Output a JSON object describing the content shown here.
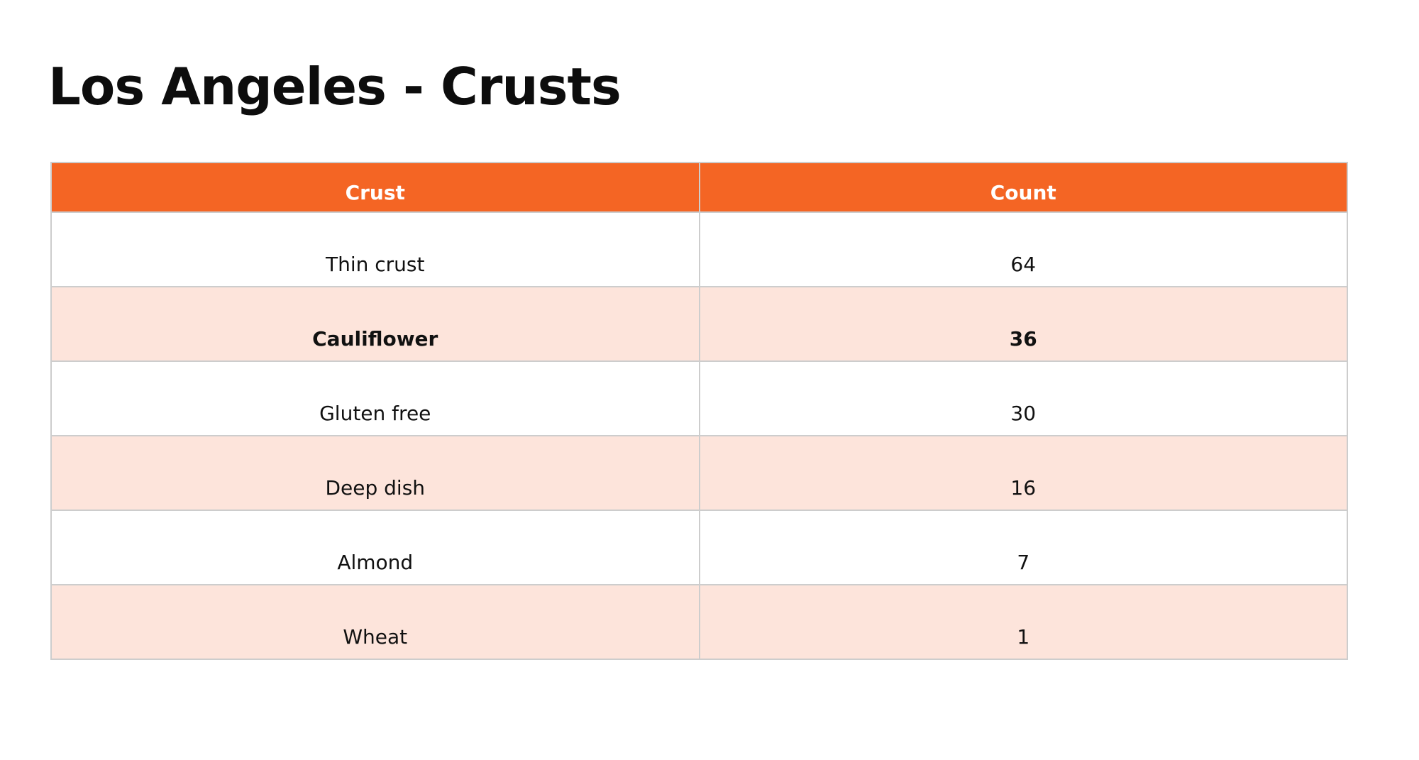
{
  "title": "Los Angeles - Crusts",
  "colors": {
    "header_background": "#f46524",
    "header_text": "#ffffff",
    "stripe_background": "#fde4db",
    "row_background": "#ffffff",
    "border": "#cdcdcd"
  },
  "table": {
    "columns": [
      "Crust",
      "Count"
    ],
    "rows": [
      {
        "crust": "Thin crust",
        "count": "64"
      },
      {
        "crust": "Cauliflower",
        "count": "36",
        "bold": true
      },
      {
        "crust": "Gluten free",
        "count": "30"
      },
      {
        "crust": "Deep dish",
        "count": "16"
      },
      {
        "crust": "Almond",
        "count": "7"
      },
      {
        "crust": "Wheat",
        "count": "1"
      }
    ]
  }
}
